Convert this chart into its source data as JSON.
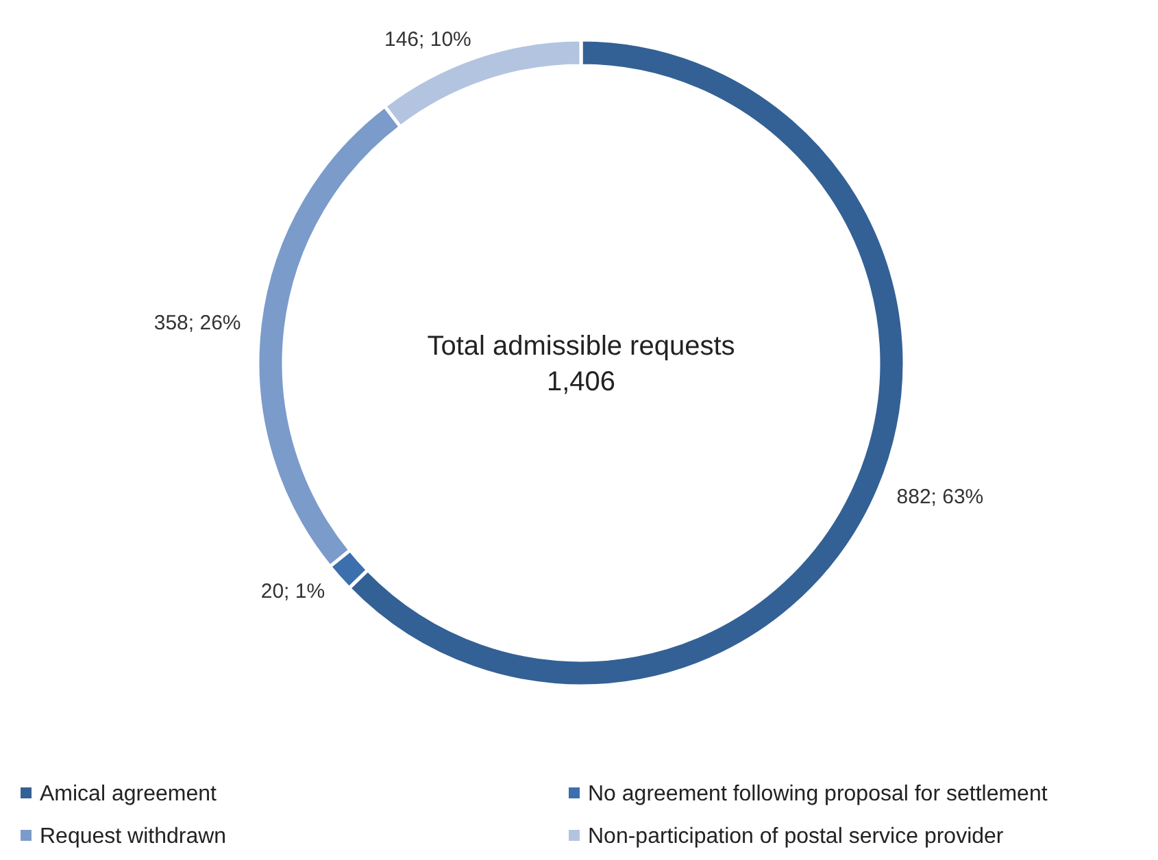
{
  "chart_data": {
    "type": "donut",
    "categories": [
      "Amical agreement",
      "No agreement following proposal for settlement",
      "Request withdrawn",
      "Non-participation of postal service provider"
    ],
    "values": [
      882,
      20,
      358,
      146
    ],
    "colors": [
      "#336195",
      "#3b6fae",
      "#7b9bcb",
      "#b3c4e0"
    ],
    "value_labels": [
      "882; 63%",
      "20; 1%",
      "358; 26%",
      "146; 10%"
    ],
    "annotations": [
      "Total admissible requests",
      "1,406"
    ],
    "legend": "bottom"
  }
}
